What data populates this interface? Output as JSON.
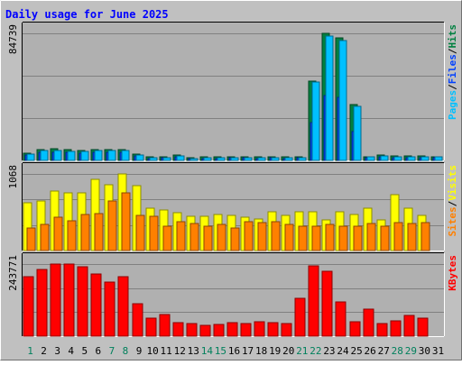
{
  "title": "Daily usage for June 2025",
  "colors": {
    "background": "#c0c0c0",
    "plot": "#b0b0b0",
    "title": "#0000ff",
    "hits": "#008040",
    "files": "#0040ff",
    "pages": "#00c0ff",
    "visits": "#ffff00",
    "sites": "#ff8000",
    "kbytes": "#ff0000",
    "weekday": "#000000",
    "weekend": "#00805c"
  },
  "chart_data": [
    {
      "type": "bar",
      "name": "hits-files-pages",
      "categories": [
        "1",
        "2",
        "3",
        "4",
        "5",
        "6",
        "7",
        "8",
        "9",
        "10",
        "11",
        "12",
        "13",
        "14",
        "15",
        "16",
        "17",
        "18",
        "19",
        "20",
        "21",
        "22",
        "23",
        "24",
        "25",
        "26",
        "27",
        "28",
        "29",
        "30",
        "31"
      ],
      "weekend_days": [
        "1",
        "7",
        "8",
        "14",
        "15",
        "21",
        "22",
        "28",
        "29"
      ],
      "ymax_label": "84739",
      "ylim": [
        0,
        84739
      ],
      "grid": true,
      "legend_label": [
        "Pages",
        "Files",
        "Hits"
      ],
      "series": [
        {
          "name": "Hits",
          "values": [
            4800,
            7500,
            7800,
            7100,
            6700,
            7500,
            7400,
            7300,
            4000,
            2200,
            2500,
            3400,
            2000,
            2200,
            2200,
            2600,
            2500,
            2200,
            2300,
            2200,
            2500,
            53000,
            84739,
            82000,
            37000,
            2700,
            3800,
            3000,
            2800,
            3100,
            2700
          ]
        },
        {
          "name": "Files",
          "values": [
            3400,
            5500,
            5700,
            5200,
            4900,
            5500,
            5400,
            5300,
            2800,
            1500,
            1600,
            2400,
            1300,
            1500,
            1500,
            1800,
            1700,
            1500,
            1600,
            1500,
            1700,
            25000,
            43000,
            42000,
            19000,
            1800,
            2600,
            2000,
            1900,
            2100,
            1800
          ]
        },
        {
          "name": "Pages",
          "values": [
            4200,
            6600,
            6800,
            6200,
            5900,
            6600,
            6500,
            6400,
            3400,
            1800,
            2000,
            2800,
            1500,
            1700,
            1700,
            2100,
            2000,
            1700,
            1800,
            1700,
            2000,
            52000,
            83000,
            80000,
            36000,
            2200,
            3200,
            2500,
            2300,
            2600,
            2200
          ]
        }
      ]
    },
    {
      "type": "bar",
      "name": "visits-sites",
      "categories": [
        "1",
        "2",
        "3",
        "4",
        "5",
        "6",
        "7",
        "8",
        "9",
        "10",
        "11",
        "12",
        "13",
        "14",
        "15",
        "16",
        "17",
        "18",
        "19",
        "20",
        "21",
        "22",
        "23",
        "24",
        "25",
        "26",
        "27",
        "28",
        "29",
        "30",
        "31"
      ],
      "ymax_label": "1068",
      "ylim": [
        0,
        1068
      ],
      "grid": true,
      "legend_label": [
        "Sites",
        "Visits"
      ],
      "series": [
        {
          "name": "Visits",
          "values": [
            660,
            695,
            825,
            800,
            810,
            990,
            915,
            1068,
            900,
            590,
            570,
            525,
            475,
            475,
            500,
            490,
            470,
            445,
            540,
            490,
            535,
            540,
            430,
            535,
            500,
            590,
            430,
            785,
            590,
            495,
            0
          ]
        },
        {
          "name": "Sites",
          "values": [
            310,
            370,
            460,
            420,
            500,
            520,
            690,
            800,
            490,
            480,
            340,
            400,
            380,
            340,
            370,
            310,
            400,
            395,
            400,
            360,
            345,
            340,
            360,
            345,
            345,
            380,
            345,
            395,
            380,
            395,
            0
          ]
        }
      ]
    },
    {
      "type": "bar",
      "name": "kbytes",
      "categories": [
        "1",
        "2",
        "3",
        "4",
        "5",
        "6",
        "7",
        "8",
        "9",
        "10",
        "11",
        "12",
        "13",
        "14",
        "15",
        "16",
        "17",
        "18",
        "19",
        "20",
        "21",
        "22",
        "23",
        "24",
        "25",
        "26",
        "27",
        "28",
        "29",
        "30",
        "31"
      ],
      "ymax_label": "243771",
      "ylim": [
        0,
        243771
      ],
      "grid": true,
      "legend_label": [
        "KBytes"
      ],
      "series": [
        {
          "name": "KBytes",
          "values": [
            200000,
            225000,
            243771,
            243000,
            235000,
            210000,
            182000,
            200000,
            110000,
            60000,
            72000,
            45000,
            42000,
            38000,
            40000,
            46000,
            44000,
            50000,
            47000,
            44000,
            128000,
            238000,
            220000,
            115000,
            48000,
            90000,
            44000,
            53000,
            70000,
            62000,
            0
          ]
        }
      ]
    }
  ]
}
